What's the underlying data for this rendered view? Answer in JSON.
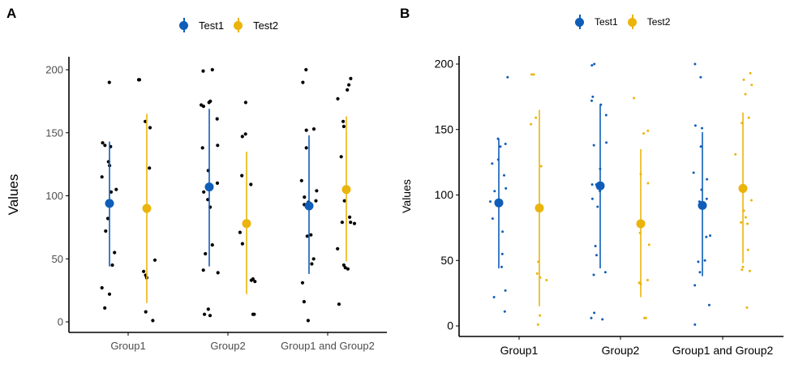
{
  "colors": {
    "test1": "#0F5DB8",
    "test2": "#EBB40C",
    "points": "#000000",
    "axis": "#000000",
    "tick_text_a": "#4D4D4D",
    "tick_text_b": "#000000"
  },
  "chart_data": [
    {
      "panel": "A",
      "type": "scatter",
      "title": "",
      "xlabel": "",
      "ylabel": "Values",
      "ylim": [
        0,
        210
      ],
      "yticks": [
        0,
        50,
        100,
        150,
        200
      ],
      "categories": [
        "Group1",
        "Group2",
        "Group1 and Group2"
      ],
      "legend": {
        "position": "top",
        "entries": [
          "Test1",
          "Test2"
        ]
      },
      "point_color": "black",
      "series": [
        {
          "name": "Test1",
          "summary": [
            {
              "category": "Group1",
              "mean": 94,
              "lower": 44,
              "upper": 143
            },
            {
              "category": "Group2",
              "mean": 107,
              "lower": 44,
              "upper": 169
            },
            {
              "category": "Group1 and Group2",
              "mean": 92,
              "lower": 38,
              "upper": 148
            }
          ],
          "points": [
            [
              190,
              139,
              142,
              140,
              127,
              124,
              115,
              105,
              103,
              82,
              72,
              55,
              45,
              27,
              22,
              11
            ],
            [
              200,
              199,
              175,
              174,
              171,
              172,
              161,
              140,
              138,
              120,
              110,
              103,
              97,
              91,
              61,
              54,
              41,
              39,
              10,
              6,
              5
            ],
            [
              200,
              190,
              153,
              152,
              138,
              112,
              104,
              99,
              96,
              95,
              93,
              69,
              68,
              50,
              46,
              31,
              16,
              1
            ]
          ]
        },
        {
          "name": "Test2",
          "summary": [
            {
              "category": "Group1",
              "mean": 90,
              "lower": 15,
              "upper": 165
            },
            {
              "category": "Group2",
              "mean": 78,
              "lower": 22,
              "upper": 135
            },
            {
              "category": "Group1 and Group2",
              "mean": 105,
              "lower": 48,
              "upper": 163
            }
          ],
          "points": [
            [
              192,
              192,
              159,
              154,
              122,
              49,
              40,
              37,
              35,
              8,
              1
            ],
            [
              174,
              149,
              147,
              116,
              109,
              71,
              62,
              33,
              34,
              32,
              6,
              6
            ],
            [
              193,
              188,
              184,
              177,
              159,
              155,
              131,
              96,
              83,
              79,
              79,
              78,
              58,
              45,
              42,
              43,
              14
            ]
          ]
        }
      ]
    },
    {
      "panel": "B",
      "type": "scatter",
      "title": "",
      "xlabel": "",
      "ylabel": "Values",
      "ylim": [
        0,
        205
      ],
      "yticks": [
        0,
        50,
        100,
        150,
        200
      ],
      "categories": [
        "Group1",
        "Group2",
        "Group1 and Group2"
      ],
      "legend": {
        "position": "top",
        "entries": [
          "Test1",
          "Test2"
        ]
      },
      "point_color": "series",
      "series": [
        {
          "name": "Test1",
          "summary": [
            {
              "category": "Group1",
              "mean": 94,
              "lower": 44,
              "upper": 143
            },
            {
              "category": "Group2",
              "mean": 107,
              "lower": 44,
              "upper": 169
            },
            {
              "category": "Group1 and Group2",
              "mean": 92,
              "lower": 38,
              "upper": 148
            }
          ],
          "points": [
            [
              190,
              143,
              139,
              137,
              127,
              124,
              115,
              105,
              103,
              95,
              82,
              72,
              55,
              45,
              27,
              22,
              11
            ],
            [
              200,
              199,
              175,
              172,
              169,
              161,
              140,
              138,
              120,
              108,
              108,
              103,
              97,
              91,
              61,
              54,
              41,
              39,
              10,
              6,
              5
            ],
            [
              200,
              190,
              153,
              151,
              137,
              117,
              112,
              104,
              97,
              95,
              69,
              68,
              50,
              49,
              41,
              31,
              16,
              1
            ]
          ]
        },
        {
          "name": "Test2",
          "summary": [
            {
              "category": "Group1",
              "mean": 90,
              "lower": 15,
              "upper": 165
            },
            {
              "category": "Group2",
              "mean": 78,
              "lower": 22,
              "upper": 135
            },
            {
              "category": "Group1 and Group2",
              "mean": 105,
              "lower": 48,
              "upper": 163
            }
          ],
          "points": [
            [
              192,
              192,
              159,
              154,
              122,
              49,
              40,
              37,
              35,
              8,
              1
            ],
            [
              174,
              149,
              147,
              116,
              109,
              79,
              71,
              62,
              35,
              33,
              32,
              6,
              6
            ],
            [
              193,
              188,
              184,
              177,
              159,
              155,
              131,
              96,
              88,
              83,
              79,
              78,
              58,
              45,
              43,
              42,
              14
            ]
          ]
        }
      ]
    }
  ]
}
